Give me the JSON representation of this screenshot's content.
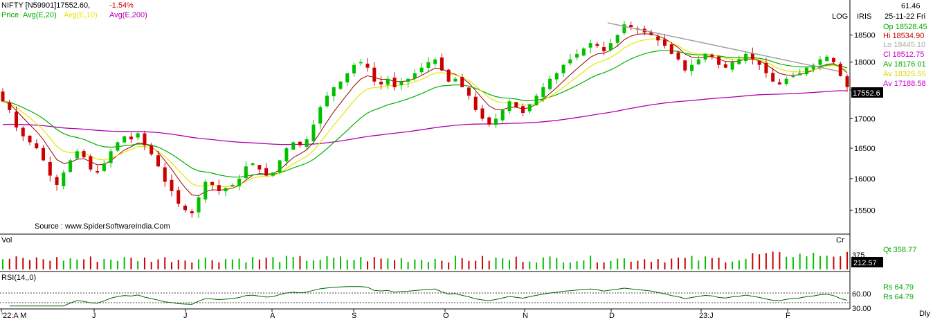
{
  "header": {
    "instrument": "NIFTY [N59901]17552.60,",
    "change": "-1.54%",
    "legend": [
      {
        "label": "Price",
        "color": "#00a000"
      },
      {
        "label": "Avg(E,20)",
        "color": "#00b000"
      },
      {
        "label": "Avg(E,10)",
        "color": "#e6e600"
      },
      {
        "label": "Avg(E,200)",
        "color": "#b000b0"
      }
    ],
    "log_label": "LOG",
    "iris_label": "IRIS",
    "source": "Source : www.SpiderSoftwareIndia.Com"
  },
  "side_panel": {
    "top_value": "61.46",
    "date": "25-11-22 Fri",
    "rows": [
      {
        "label": "Op 18528.45",
        "color": "#00aa00"
      },
      {
        "label": "Hi  18534.90",
        "color": "#cc0000"
      },
      {
        "label": "Lo  18445.10",
        "color": "#aaaaaa"
      },
      {
        "label": "Cl  18512.75",
        "color": "#cc00cc"
      },
      {
        "label": "Av 18176.01",
        "color": "#00aa00"
      },
      {
        "label": "Av 18325.55",
        "color": "#d8d800"
      },
      {
        "label": "Av 17188.58",
        "color": "#cc00cc"
      }
    ],
    "qt": "Qt    358.77",
    "rs1": "Rs     64.79",
    "rs2": "Rs     64.79",
    "dly": "Dly"
  },
  "price_badge": "17552.6",
  "volume_badge": "212.57",
  "volume_panel": {
    "label": "Vol",
    "cr": "Cr",
    "tick": "375"
  },
  "rsi_panel": {
    "label": "RSI(14,,0)",
    "ticks": [
      "60.00",
      "30.00"
    ]
  },
  "chart_data": {
    "type": "candlestick",
    "scale": "log",
    "ylim": [
      15150,
      18900
    ],
    "yticks": [
      15500,
      16000,
      16500,
      17000,
      17500,
      18000,
      18500
    ],
    "x_labels": [
      "'22:A M",
      "J",
      "J",
      "A",
      "S",
      "O",
      "N",
      "D",
      "23:J",
      "F"
    ],
    "close_series": [
      17300,
      17150,
      16850,
      16700,
      16600,
      16500,
      16300,
      16050,
      15900,
      16100,
      16300,
      16450,
      16350,
      16150,
      16100,
      16250,
      16450,
      16600,
      16700,
      16650,
      16750,
      16550,
      16400,
      16200,
      15950,
      15800,
      15600,
      15500,
      15450,
      15700,
      15950,
      15900,
      15800,
      15850,
      15900,
      16000,
      16200,
      16250,
      16150,
      16050,
      16100,
      16300,
      16500,
      16600,
      16550,
      16650,
      16900,
      17200,
      17400,
      17550,
      17650,
      17800,
      17950,
      18000,
      17900,
      17650,
      17600,
      17700,
      17550,
      17650,
      17700,
      17800,
      17900,
      18000,
      18050,
      17850,
      17650,
      17700,
      17550,
      17400,
      17150,
      17000,
      16900,
      17000,
      17150,
      17300,
      17200,
      17100,
      17250,
      17400,
      17550,
      17700,
      17800,
      17950,
      18050,
      18150,
      18250,
      18350,
      18300,
      18200,
      18350,
      18500,
      18700,
      18650,
      18600,
      18550,
      18500,
      18400,
      18300,
      18150,
      18050,
      17850,
      17950,
      18050,
      18150,
      18100,
      17950,
      17900,
      18000,
      18050,
      18150,
      18050,
      17950,
      17800,
      17650,
      17600,
      17700,
      17750,
      17800,
      17900,
      17950,
      18050,
      18100,
      18000,
      17750,
      17552.6
    ],
    "series": [
      {
        "name": "Avg(E,20)",
        "color": "#00b000"
      },
      {
        "name": "Avg(E,10)",
        "color": "#e6e600"
      },
      {
        "name": "Avg(E,200)",
        "color": "#b000b0"
      }
    ],
    "rsi_ylim": [
      30,
      60
    ],
    "volume_max": 375
  },
  "colors": {
    "up": "#00c000",
    "down": "#cc0000",
    "avg20": "#00b000",
    "avg10": "#e6e600",
    "avg200": "#b000b0",
    "ema_dark": "#990000",
    "trendline": "#a0a0a0",
    "rsi_line": "#006400"
  }
}
